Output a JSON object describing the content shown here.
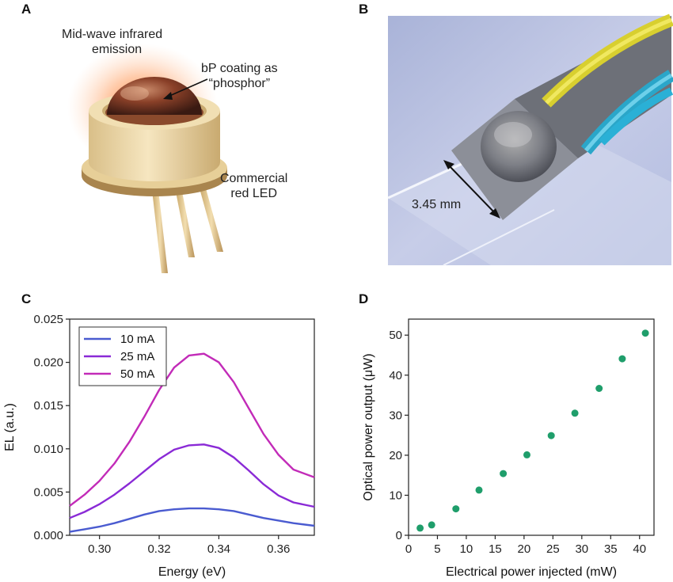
{
  "panels": {
    "a": {
      "letter": "A",
      "label_emission_line1": "Mid-wave infrared",
      "label_emission_line2": "emission",
      "label_coating_line1": "bP coating as",
      "label_coating_line2": "“phosphor”",
      "label_led_line1": "Commercial",
      "label_led_line2": "red LED"
    },
    "b": {
      "letter": "B",
      "dimension_label": "3.45 mm"
    },
    "c": {
      "letter": "C"
    },
    "d": {
      "letter": "D"
    }
  },
  "colors": {
    "series_10mA": "#4a5bd0",
    "series_25mA": "#8a2ad6",
    "series_50mA": "#c22bb8",
    "scatter_points": "#1f9e6b",
    "glow": "#ff7a2e"
  },
  "chart_data": [
    {
      "type": "line",
      "panel": "C",
      "xlabel": "Energy (eV)",
      "ylabel": "EL (a.u.)",
      "xlim": [
        0.29,
        0.372
      ],
      "ylim": [
        0,
        0.025
      ],
      "xticks": [
        "0.30",
        "0.32",
        "0.34",
        "0.36"
      ],
      "yticks": [
        "0.000",
        "0.005",
        "0.010",
        "0.015",
        "0.020",
        "0.025"
      ],
      "legend_position": "top-left",
      "x": [
        0.29,
        0.295,
        0.3,
        0.305,
        0.31,
        0.315,
        0.32,
        0.325,
        0.33,
        0.335,
        0.34,
        0.345,
        0.35,
        0.355,
        0.36,
        0.365,
        0.372
      ],
      "series": [
        {
          "name": "10 mA",
          "values": [
            0.0004,
            0.0007,
            0.001,
            0.0014,
            0.0019,
            0.0024,
            0.0028,
            0.003,
            0.0031,
            0.0031,
            0.003,
            0.0028,
            0.0024,
            0.002,
            0.0017,
            0.0014,
            0.0011
          ]
        },
        {
          "name": "25 mA",
          "values": [
            0.002,
            0.0027,
            0.0036,
            0.0047,
            0.006,
            0.0074,
            0.0088,
            0.0099,
            0.0104,
            0.0105,
            0.0101,
            0.009,
            0.0075,
            0.0059,
            0.0046,
            0.0038,
            0.0033
          ]
        },
        {
          "name": "50 mA",
          "values": [
            0.0034,
            0.0047,
            0.0063,
            0.0083,
            0.0108,
            0.0137,
            0.0168,
            0.0194,
            0.0208,
            0.021,
            0.02,
            0.0177,
            0.0147,
            0.0117,
            0.0093,
            0.0076,
            0.0067
          ]
        }
      ]
    },
    {
      "type": "scatter",
      "panel": "D",
      "xlabel": "Electrical power injected (mW)",
      "ylabel": "Optical power output (μW)",
      "xlim": [
        0,
        42.5
      ],
      "ylim": [
        0,
        54
      ],
      "xticks": [
        "0",
        "5",
        "10",
        "15",
        "20",
        "25",
        "30",
        "35",
        "40"
      ],
      "yticks": [
        "0",
        "10",
        "20",
        "30",
        "40",
        "50"
      ],
      "x": [
        2.0,
        4.0,
        8.2,
        12.2,
        16.4,
        20.5,
        24.7,
        28.8,
        33.0,
        37.0,
        41.0
      ],
      "y": [
        1.8,
        2.6,
        6.6,
        11.3,
        15.4,
        20.1,
        24.9,
        30.5,
        36.7,
        44.1,
        50.5
      ]
    }
  ]
}
